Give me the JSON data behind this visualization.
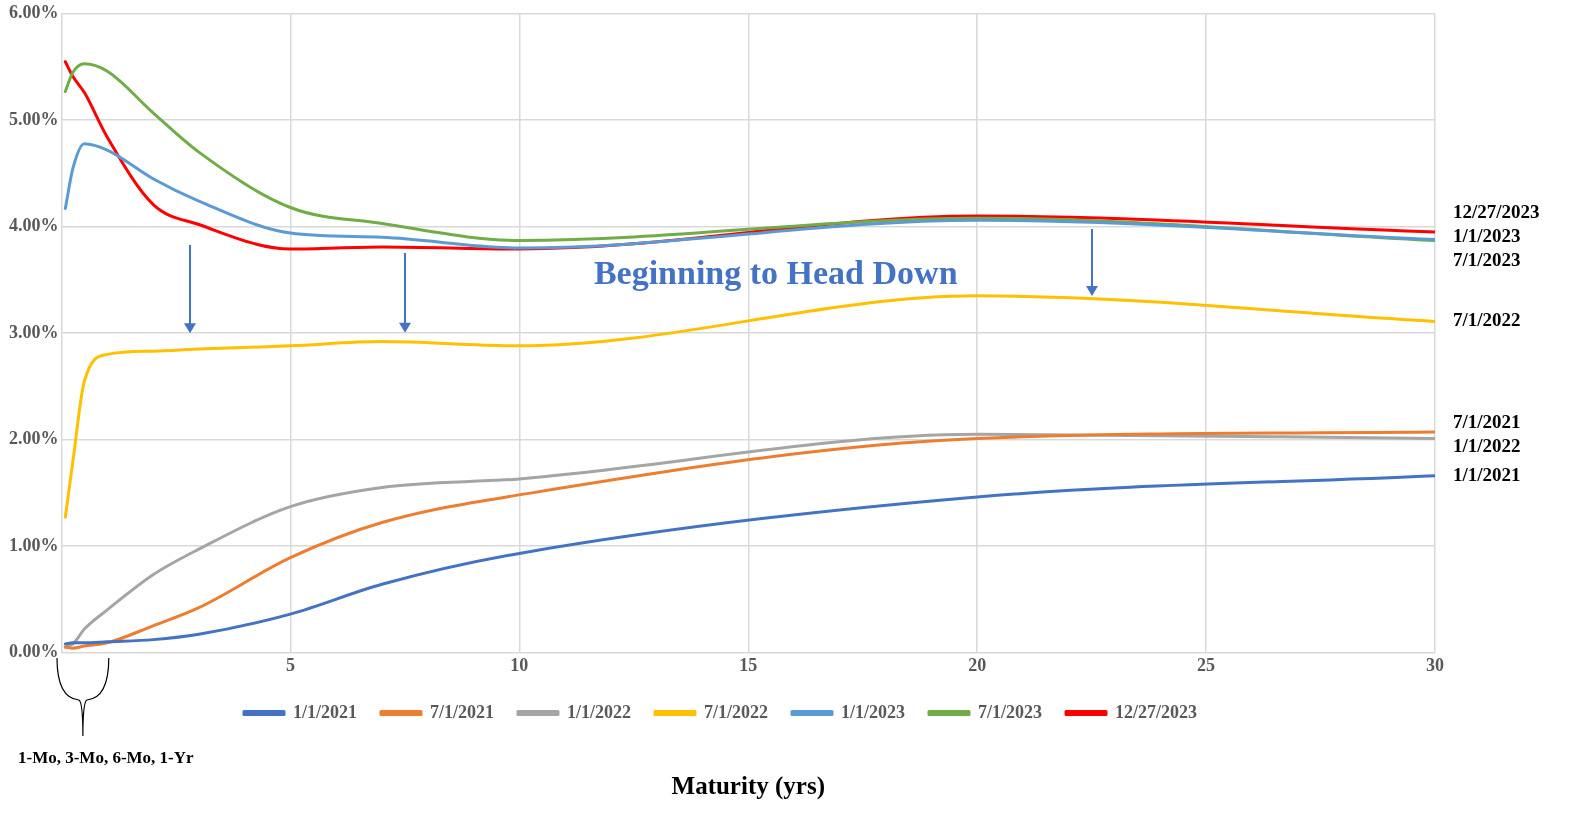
{
  "chart_data": {
    "type": "line",
    "xlabel": "Maturity (yrs)",
    "x": [
      0.0833,
      0.25,
      0.5,
      1,
      2,
      3,
      5,
      7,
      10,
      20,
      30
    ],
    "series": [
      {
        "name": "1/1/2021",
        "color": "#4472c4",
        "values": [
          0.08,
          0.09,
          0.09,
          0.1,
          0.12,
          0.17,
          0.36,
          0.64,
          0.93,
          1.46,
          1.66
        ]
      },
      {
        "name": "7/1/2021",
        "color": "#ed7d31",
        "values": [
          0.05,
          0.04,
          0.06,
          0.09,
          0.25,
          0.42,
          0.89,
          1.22,
          1.48,
          2.01,
          2.07
        ]
      },
      {
        "name": "1/1/2022",
        "color": "#a5a5a5",
        "values": [
          0.05,
          0.08,
          0.22,
          0.4,
          0.73,
          0.97,
          1.37,
          1.55,
          1.63,
          2.05,
          2.01
        ]
      },
      {
        "name": "7/1/2022",
        "color": "#ffc000",
        "values": [
          1.27,
          1.8,
          2.55,
          2.8,
          2.83,
          2.85,
          2.88,
          2.92,
          2.88,
          3.35,
          3.11
        ]
      },
      {
        "name": "1/1/2023",
        "color": "#5b9bd5",
        "values": [
          4.17,
          4.55,
          4.78,
          4.72,
          4.45,
          4.24,
          3.94,
          3.9,
          3.8,
          4.06,
          3.88
        ]
      },
      {
        "name": "7/1/2023",
        "color": "#70ad47",
        "values": [
          5.27,
          5.45,
          5.53,
          5.46,
          5.07,
          4.7,
          4.18,
          4.03,
          3.87,
          4.08,
          3.87
        ]
      },
      {
        "name": "12/27/2023",
        "color": "#ff0000",
        "values": [
          5.55,
          5.41,
          5.26,
          4.84,
          4.21,
          4.02,
          3.79,
          3.81,
          3.79,
          4.1,
          3.95
        ]
      }
    ],
    "xlim": [
      0,
      30
    ],
    "xticks": [
      {
        "value": 0,
        "label": null
      },
      5,
      10,
      15,
      20,
      25,
      30
    ],
    "ylim": [
      0,
      6
    ],
    "yticks": [
      {
        "value": 0,
        "label": "0.00%"
      },
      {
        "value": 1,
        "label": "1.00%"
      },
      {
        "value": 2,
        "label": "2.00%"
      },
      {
        "value": 3,
        "label": "3.00%"
      },
      {
        "value": 4,
        "label": "4.00%"
      },
      {
        "value": 5,
        "label": "5.00%"
      },
      {
        "value": 6,
        "label": "6.00%"
      }
    ],
    "annotations": [
      "Beginning to Head Down",
      "1-Mo, 3-Mo, 6-Mo, 1-Yr"
    ],
    "grid": true,
    "legend": "bottom",
    "marker": "none",
    "line_style": "solid"
  }
}
